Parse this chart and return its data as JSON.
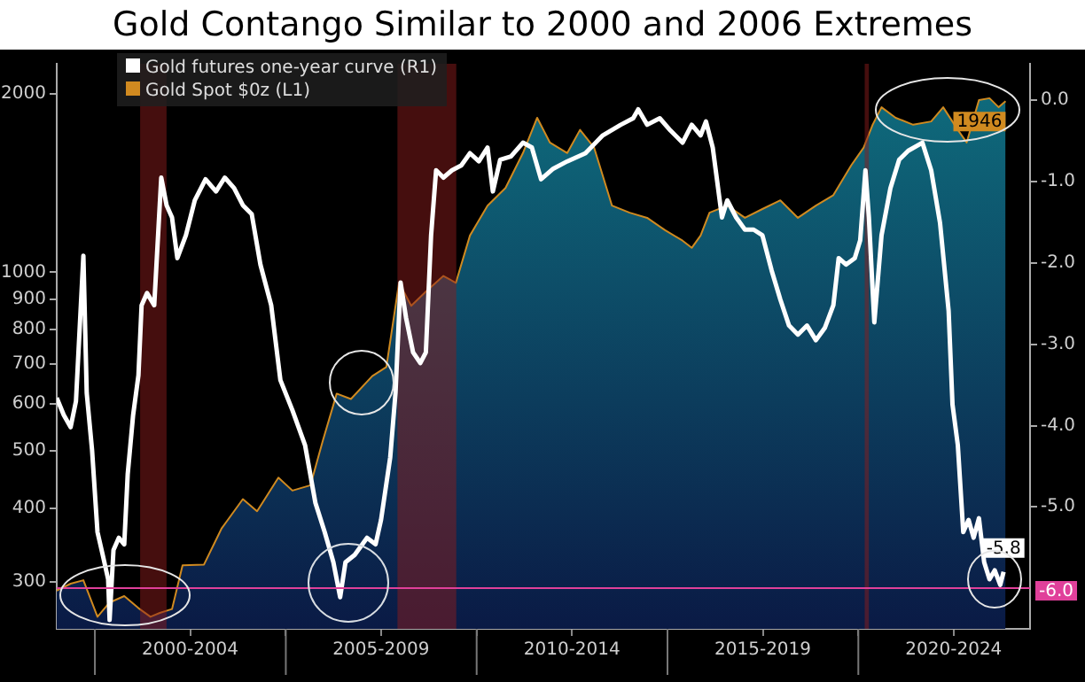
{
  "chart_data": {
    "type": "line",
    "title": "Gold Contango Similar to 2000 and 2006 Extremes",
    "xlim": [
      "1999-01-01",
      "2024-07-01"
    ],
    "xticks": [
      {
        "value": "2000-01-01",
        "label": null
      },
      {
        "value": "2002-07-01",
        "label": "2000-2004"
      },
      {
        "value": "2005-01-01",
        "label": null
      },
      {
        "value": "2007-07-01",
        "label": "2005-2009"
      },
      {
        "value": "2010-01-01",
        "label": null
      },
      {
        "value": "2012-07-01",
        "label": "2010-2014"
      },
      {
        "value": "2015-01-01",
        "label": null
      },
      {
        "value": "2017-07-01",
        "label": "2015-2019"
      },
      {
        "value": "2020-01-01",
        "label": null
      },
      {
        "value": "2022-07-01",
        "label": "2020-2024"
      }
    ],
    "log": "y",
    "ylim": [
      250,
      2250
    ],
    "yticks": [
      300,
      400,
      500,
      600,
      700,
      800,
      900,
      1000,
      2000
    ],
    "y2lim": [
      -6.5,
      0.45
    ],
    "y2ticks": [
      {
        "value": 0,
        "label": "0.0"
      },
      {
        "value": -1,
        "label": "-1.0"
      },
      {
        "value": -2,
        "label": "-2.0"
      },
      {
        "value": -3,
        "label": "-3.0"
      },
      {
        "value": -4,
        "label": "-4.0"
      },
      {
        "value": -5,
        "label": "-5.0"
      }
    ],
    "grid": false,
    "legend": "top left",
    "bands": [
      {
        "axis": "x",
        "from": "2001-03-09",
        "to": "2001-11-17",
        "color": "#8a1c1c"
      },
      {
        "axis": "x",
        "from": "2007-12-05",
        "to": "2009-06-20",
        "color": "#8a1c1c"
      },
      {
        "axis": "x",
        "from": "2020-03-02",
        "to": "2020-04-11",
        "color": "#8a1c1c"
      }
    ],
    "ref_lines": [
      {
        "axis": "y2",
        "value": -6.0,
        "label": "-6.0",
        "color": "#e0409a"
      }
    ],
    "series": [
      {
        "name": "Gold futures one-year curve (R1)",
        "type": "line",
        "axis": "y2",
        "color": "#ffffff",
        "x": [
          "1999-01-01",
          "1999-03-09",
          "1999-05-14",
          "1999-07-04",
          "1999-09-13",
          "1999-10-15",
          "1999-12-05",
          "2000-01-26",
          "2000-03-16",
          "2000-05-07",
          "2000-05-21",
          "2000-06-27",
          "2000-08-17",
          "2000-10-08",
          "2000-11-10",
          "2001-01-01",
          "2001-02-21",
          "2001-03-23",
          "2001-05-14",
          "2001-07-22",
          "2001-09-27",
          "2001-11-17",
          "2002-01-08",
          "2002-02-28",
          "2002-05-21",
          "2002-08-14",
          "2002-11-25",
          "2003-03-05",
          "2003-05-28",
          "2003-08-25",
          "2003-11-17",
          "2004-02-10",
          "2004-05-03",
          "2004-08-14",
          "2004-11-10",
          "2005-03-05",
          "2005-07-04",
          "2005-10-11",
          "2006-01-08",
          "2006-04-01",
          "2006-06-05",
          "2006-07-26",
          "2006-10-22",
          "2007-02-17",
          "2007-05-10",
          "2007-07-01",
          "2007-09-27",
          "2007-11-17",
          "2008-01-04",
          "2008-02-25",
          "2008-05-03",
          "2008-07-11",
          "2008-09-02",
          "2008-10-22",
          "2008-12-09",
          "2009-02-17",
          "2009-05-10",
          "2009-08-07",
          "2009-10-29",
          "2010-01-22",
          "2010-04-15",
          "2010-06-05",
          "2010-08-14",
          "2010-11-25",
          "2011-03-20",
          "2011-06-13",
          "2011-09-09",
          "2012-01-04",
          "2012-05-17",
          "2012-11-07",
          "2013-01-29",
          "2013-04-22",
          "2013-10-11",
          "2014-02-07",
          "2014-03-27",
          "2014-06-20",
          "2014-10-19",
          "2015-01-29",
          "2015-05-25",
          "2015-08-21",
          "2015-11-14",
          "2016-01-04",
          "2016-03-09",
          "2016-06-05",
          "2016-07-26",
          "2016-10-19",
          "2017-01-11",
          "2017-04-04",
          "2017-06-27",
          "2017-09-23",
          "2017-12-16",
          "2018-03-09",
          "2018-06-02",
          "2018-08-28",
          "2018-11-21",
          "2019-02-14",
          "2019-05-07",
          "2019-06-27",
          "2019-09-05",
          "2019-11-28",
          "2020-01-19",
          "2020-03-09",
          "2020-04-11",
          "2020-06-02",
          "2020-08-10",
          "2020-11-03",
          "2021-01-26",
          "2021-04-22",
          "2021-09-05",
          "2021-11-28",
          "2022-02-21",
          "2022-05-14",
          "2022-06-20",
          "2022-08-10",
          "2022-10-01",
          "2022-11-21",
          "2023-01-08",
          "2023-02-28",
          "2023-04-19",
          "2023-06-09",
          "2023-07-29",
          "2023-09-20",
          "2023-10-22"
        ],
        "values": [
          -3.66,
          -3.87,
          -4.02,
          -3.7,
          -1.91,
          -3.6,
          -4.3,
          -5.31,
          -5.59,
          -5.89,
          -6.39,
          -5.53,
          -5.38,
          -5.46,
          -4.6,
          -3.87,
          -3.38,
          -2.52,
          -2.37,
          -2.52,
          -0.95,
          -1.29,
          -1.44,
          -1.94,
          -1.66,
          -1.23,
          -0.97,
          -1.12,
          -0.95,
          -1.08,
          -1.29,
          -1.4,
          -2.02,
          -2.52,
          -3.44,
          -3.81,
          -4.24,
          -4.95,
          -5.31,
          -5.68,
          -6.11,
          -5.68,
          -5.59,
          -5.38,
          -5.46,
          -5.16,
          -4.39,
          -3.59,
          -2.24,
          -2.67,
          -3.1,
          -3.23,
          -3.1,
          -1.66,
          -0.86,
          -0.95,
          -0.86,
          -0.8,
          -0.65,
          -0.75,
          -0.58,
          -1.12,
          -0.73,
          -0.69,
          -0.52,
          -0.58,
          -0.97,
          -0.84,
          -0.75,
          -0.65,
          -0.54,
          -0.43,
          -0.3,
          -0.22,
          -0.11,
          -0.3,
          -0.22,
          -0.37,
          -0.52,
          -0.3,
          -0.43,
          -0.26,
          -0.58,
          -1.44,
          -1.23,
          -1.44,
          -1.59,
          -1.59,
          -1.66,
          -2.09,
          -2.45,
          -2.77,
          -2.88,
          -2.77,
          -2.95,
          -2.8,
          -2.52,
          -1.94,
          -2.02,
          -1.94,
          -1.72,
          -0.86,
          -1.44,
          -2.73,
          -1.66,
          -1.08,
          -0.73,
          -0.62,
          -0.52,
          -0.86,
          -1.51,
          -2.59,
          -3.74,
          -4.24,
          -5.31,
          -5.16,
          -5.38,
          -5.14,
          -5.68,
          -5.89,
          -5.78,
          -5.96,
          -5.8
        ],
        "value_labels": [
          null,
          null,
          null,
          null,
          null,
          null,
          null,
          null,
          null,
          null,
          null,
          null,
          null,
          null,
          null,
          null,
          null,
          null,
          null,
          null,
          null,
          null,
          null,
          null,
          null,
          null,
          null,
          null,
          null,
          null,
          null,
          null,
          null,
          null,
          null,
          null,
          null,
          null,
          null,
          null,
          null,
          null,
          null,
          null,
          null,
          null,
          null,
          null,
          null,
          null,
          null,
          null,
          null,
          null,
          null,
          null,
          null,
          null,
          null,
          null,
          null,
          null,
          null,
          null,
          null,
          null,
          null,
          null,
          null,
          null,
          null,
          null,
          null,
          null,
          null,
          null,
          null,
          null,
          null,
          null,
          null,
          null,
          null,
          null,
          null,
          null,
          null,
          null,
          null,
          null,
          null,
          null,
          null,
          null,
          null,
          null,
          null,
          null,
          null,
          null,
          null,
          null,
          null,
          null,
          null,
          null,
          null,
          null,
          null,
          null,
          null,
          null,
          null,
          null,
          null,
          null,
          null,
          null,
          null,
          null,
          null,
          null,
          "-5.8"
        ]
      },
      {
        "name": "Gold Spot $0z  (L1)",
        "type": "area",
        "axis": "y",
        "color": "#d08a20",
        "x": [
          "1999-01-01",
          "1999-05-14",
          "1999-09-13",
          "2000-01-26",
          "2000-05-21",
          "2000-10-08",
          "2001-02-21",
          "2001-06-16",
          "2001-09-13",
          "2002-01-08",
          "2002-04-19",
          "2002-11-10",
          "2003-04-26",
          "2003-11-17",
          "2004-04-01",
          "2004-10-22",
          "2005-03-05",
          "2005-08-25",
          "2005-12-20",
          "2006-05-03",
          "2006-09-16",
          "2007-04-08",
          "2007-08-21",
          "2007-12-20",
          "2008-04-15",
          "2008-09-02",
          "2009-02-17",
          "2009-06-16",
          "2009-10-29",
          "2010-04-15",
          "2010-10-04",
          "2011-03-20",
          "2011-08-03",
          "2011-12-02",
          "2012-05-17",
          "2012-09-16",
          "2013-01-29",
          "2013-07-19",
          "2014-01-04",
          "2014-06-20",
          "2014-12-09",
          "2015-05-25",
          "2015-08-21",
          "2015-11-14",
          "2016-02-07",
          "2016-07-26",
          "2017-01-11",
          "2017-06-27",
          "2017-12-16",
          "2018-06-02",
          "2018-11-21",
          "2019-05-07",
          "2019-10-26",
          "2020-02-21",
          "2020-05-17",
          "2020-08-10",
          "2020-12-23",
          "2021-06-09",
          "2021-11-28",
          "2022-03-23",
          "2022-08-10",
          "2022-11-03",
          "2023-02-28",
          "2023-06-09",
          "2023-09-05",
          "2023-11-10"
        ],
        "values": [
          290,
          298,
          302,
          262,
          277,
          284,
          271,
          262,
          266,
          270,
          320,
          321,
          369,
          414,
          395,
          450,
          428,
          437,
          519,
          624,
          611,
          668,
          692,
          960,
          878,
          928,
          986,
          960,
          1154,
          1296,
          1388,
          1590,
          1824,
          1657,
          1590,
          1740,
          1624,
          1296,
          1261,
          1236,
          1178,
          1131,
          1100,
          1154,
          1261,
          1296,
          1236,
          1279,
          1323,
          1236,
          1296,
          1350,
          1517,
          1624,
          1775,
          1900,
          1824,
          1775,
          1798,
          1900,
          1740,
          1657,
          1953,
          1968,
          1900,
          1946
        ],
        "value_labels": [
          null,
          null,
          null,
          null,
          null,
          null,
          null,
          null,
          null,
          null,
          null,
          null,
          null,
          null,
          null,
          null,
          null,
          null,
          null,
          null,
          null,
          null,
          null,
          null,
          null,
          null,
          null,
          null,
          null,
          null,
          null,
          null,
          null,
          null,
          null,
          null,
          null,
          null,
          null,
          null,
          null,
          null,
          null,
          null,
          null,
          null,
          null,
          null,
          null,
          null,
          null,
          null,
          null,
          null,
          null,
          null,
          null,
          null,
          null,
          null,
          null,
          null,
          null,
          null,
          null,
          "1946"
        ]
      }
    ]
  }
}
